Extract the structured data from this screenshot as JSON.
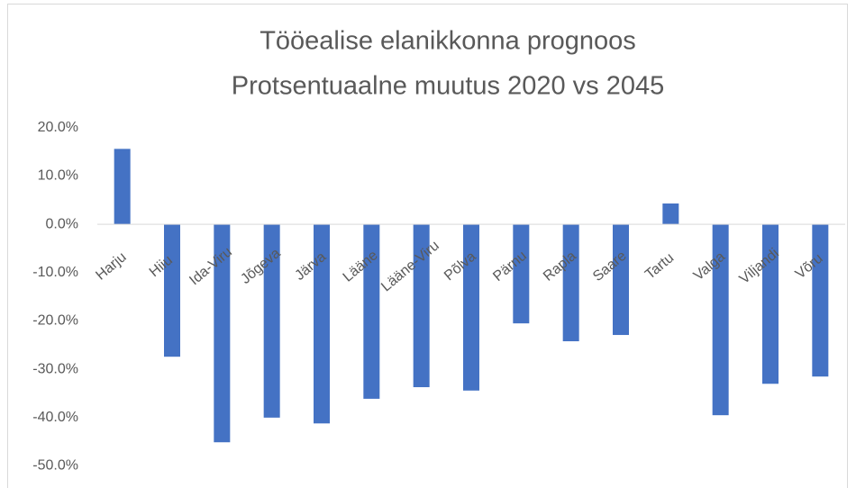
{
  "chart_data": {
    "type": "bar",
    "title": "Tööealise elanikkonna prognoos",
    "subtitle": "Protsentuaalne muutus 2020 vs 2045",
    "categories": [
      "Harju",
      "Hiiu",
      "Ida-Viru",
      "Jõgeva",
      "Järva",
      "Lääne",
      "Lääne-Viru",
      "Põlva",
      "Pärnu",
      "Rapla",
      "Saare",
      "Tartu",
      "Valga",
      "Viljandi",
      "Võru"
    ],
    "values": [
      15.6,
      -27.4,
      -45.1,
      -40.0,
      -41.2,
      -36.1,
      -33.7,
      -34.4,
      -20.5,
      -24.2,
      -22.9,
      4.3,
      -39.5,
      -33.0,
      -31.5
    ],
    "color": "#4472c4",
    "ylim": [
      -54,
      22
    ],
    "yticks": [
      {
        "value": 20,
        "label": "20.0%"
      },
      {
        "value": 10,
        "label": "10.0%"
      },
      {
        "value": 0,
        "label": "0.0%"
      },
      {
        "value": -10,
        "label": "-10.0%"
      },
      {
        "value": -20,
        "label": "-20.0%"
      },
      {
        "value": -30,
        "label": "-30.0%"
      },
      {
        "value": -40,
        "label": "-40.0%"
      },
      {
        "value": -50,
        "label": "-50.0%"
      }
    ],
    "grid": false
  }
}
